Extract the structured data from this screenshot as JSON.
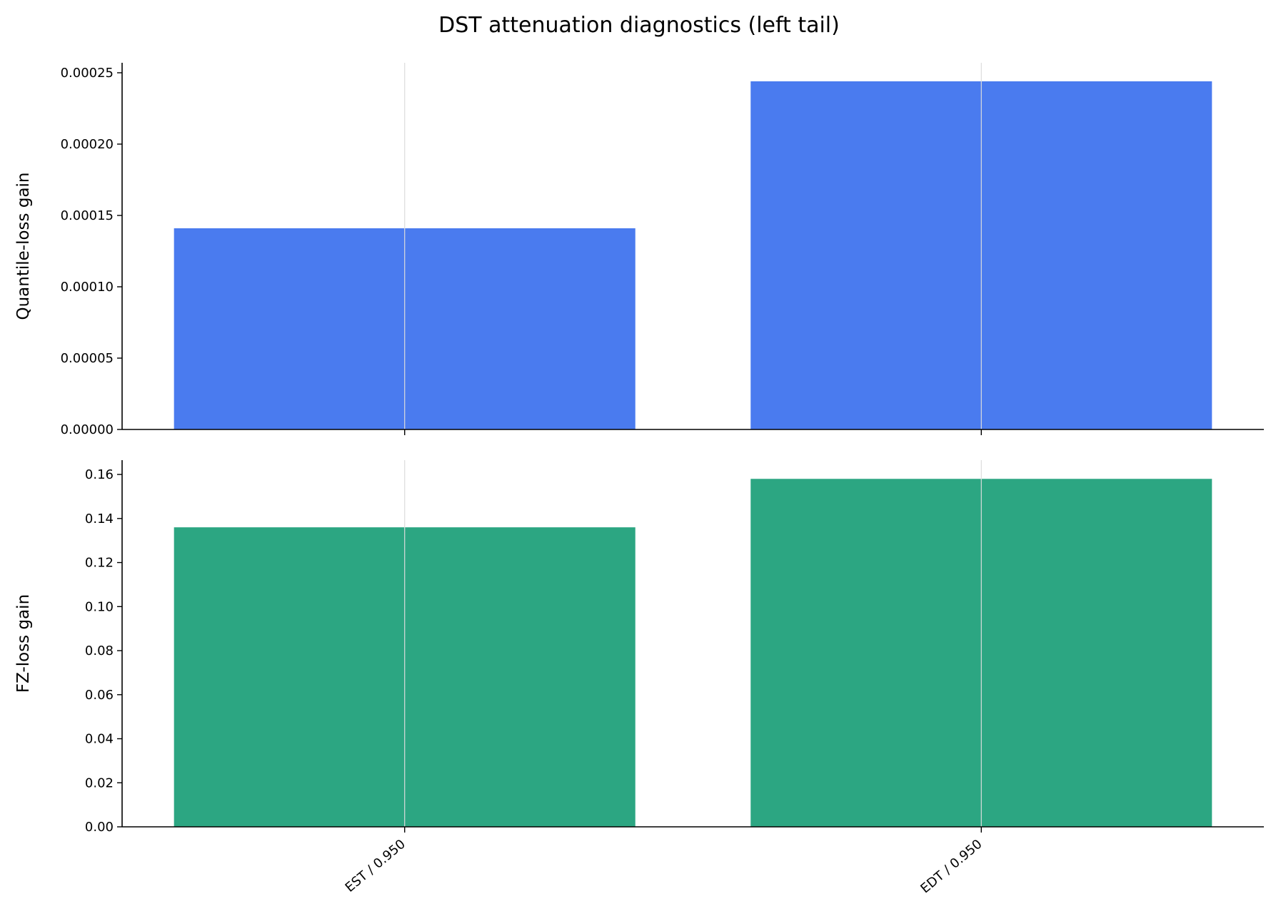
{
  "chart_data": {
    "title": "DST attenuation diagnostics (left tail)",
    "categories": [
      "EST / 0.950",
      "EDT / 0.950"
    ],
    "grid": "x-only",
    "panels": [
      {
        "type": "bar",
        "ylabel": "Quantile-loss gain",
        "color": "#4a7bef",
        "values": [
          0.000141,
          0.000244
        ],
        "ylim": [
          0,
          0.000257
        ],
        "yticks": [
          0,
          5e-05,
          0.0001,
          0.00015,
          0.0002,
          0.00025
        ],
        "tick_decimals": 5
      },
      {
        "type": "bar",
        "ylabel": "FZ-loss gain",
        "color": "#2ca682",
        "values": [
          0.136,
          0.158
        ],
        "ylim": [
          0,
          0.1665
        ],
        "yticks": [
          0,
          0.02,
          0.04,
          0.06,
          0.08,
          0.1,
          0.12,
          0.14,
          0.16
        ],
        "tick_decimals": 2
      }
    ]
  }
}
